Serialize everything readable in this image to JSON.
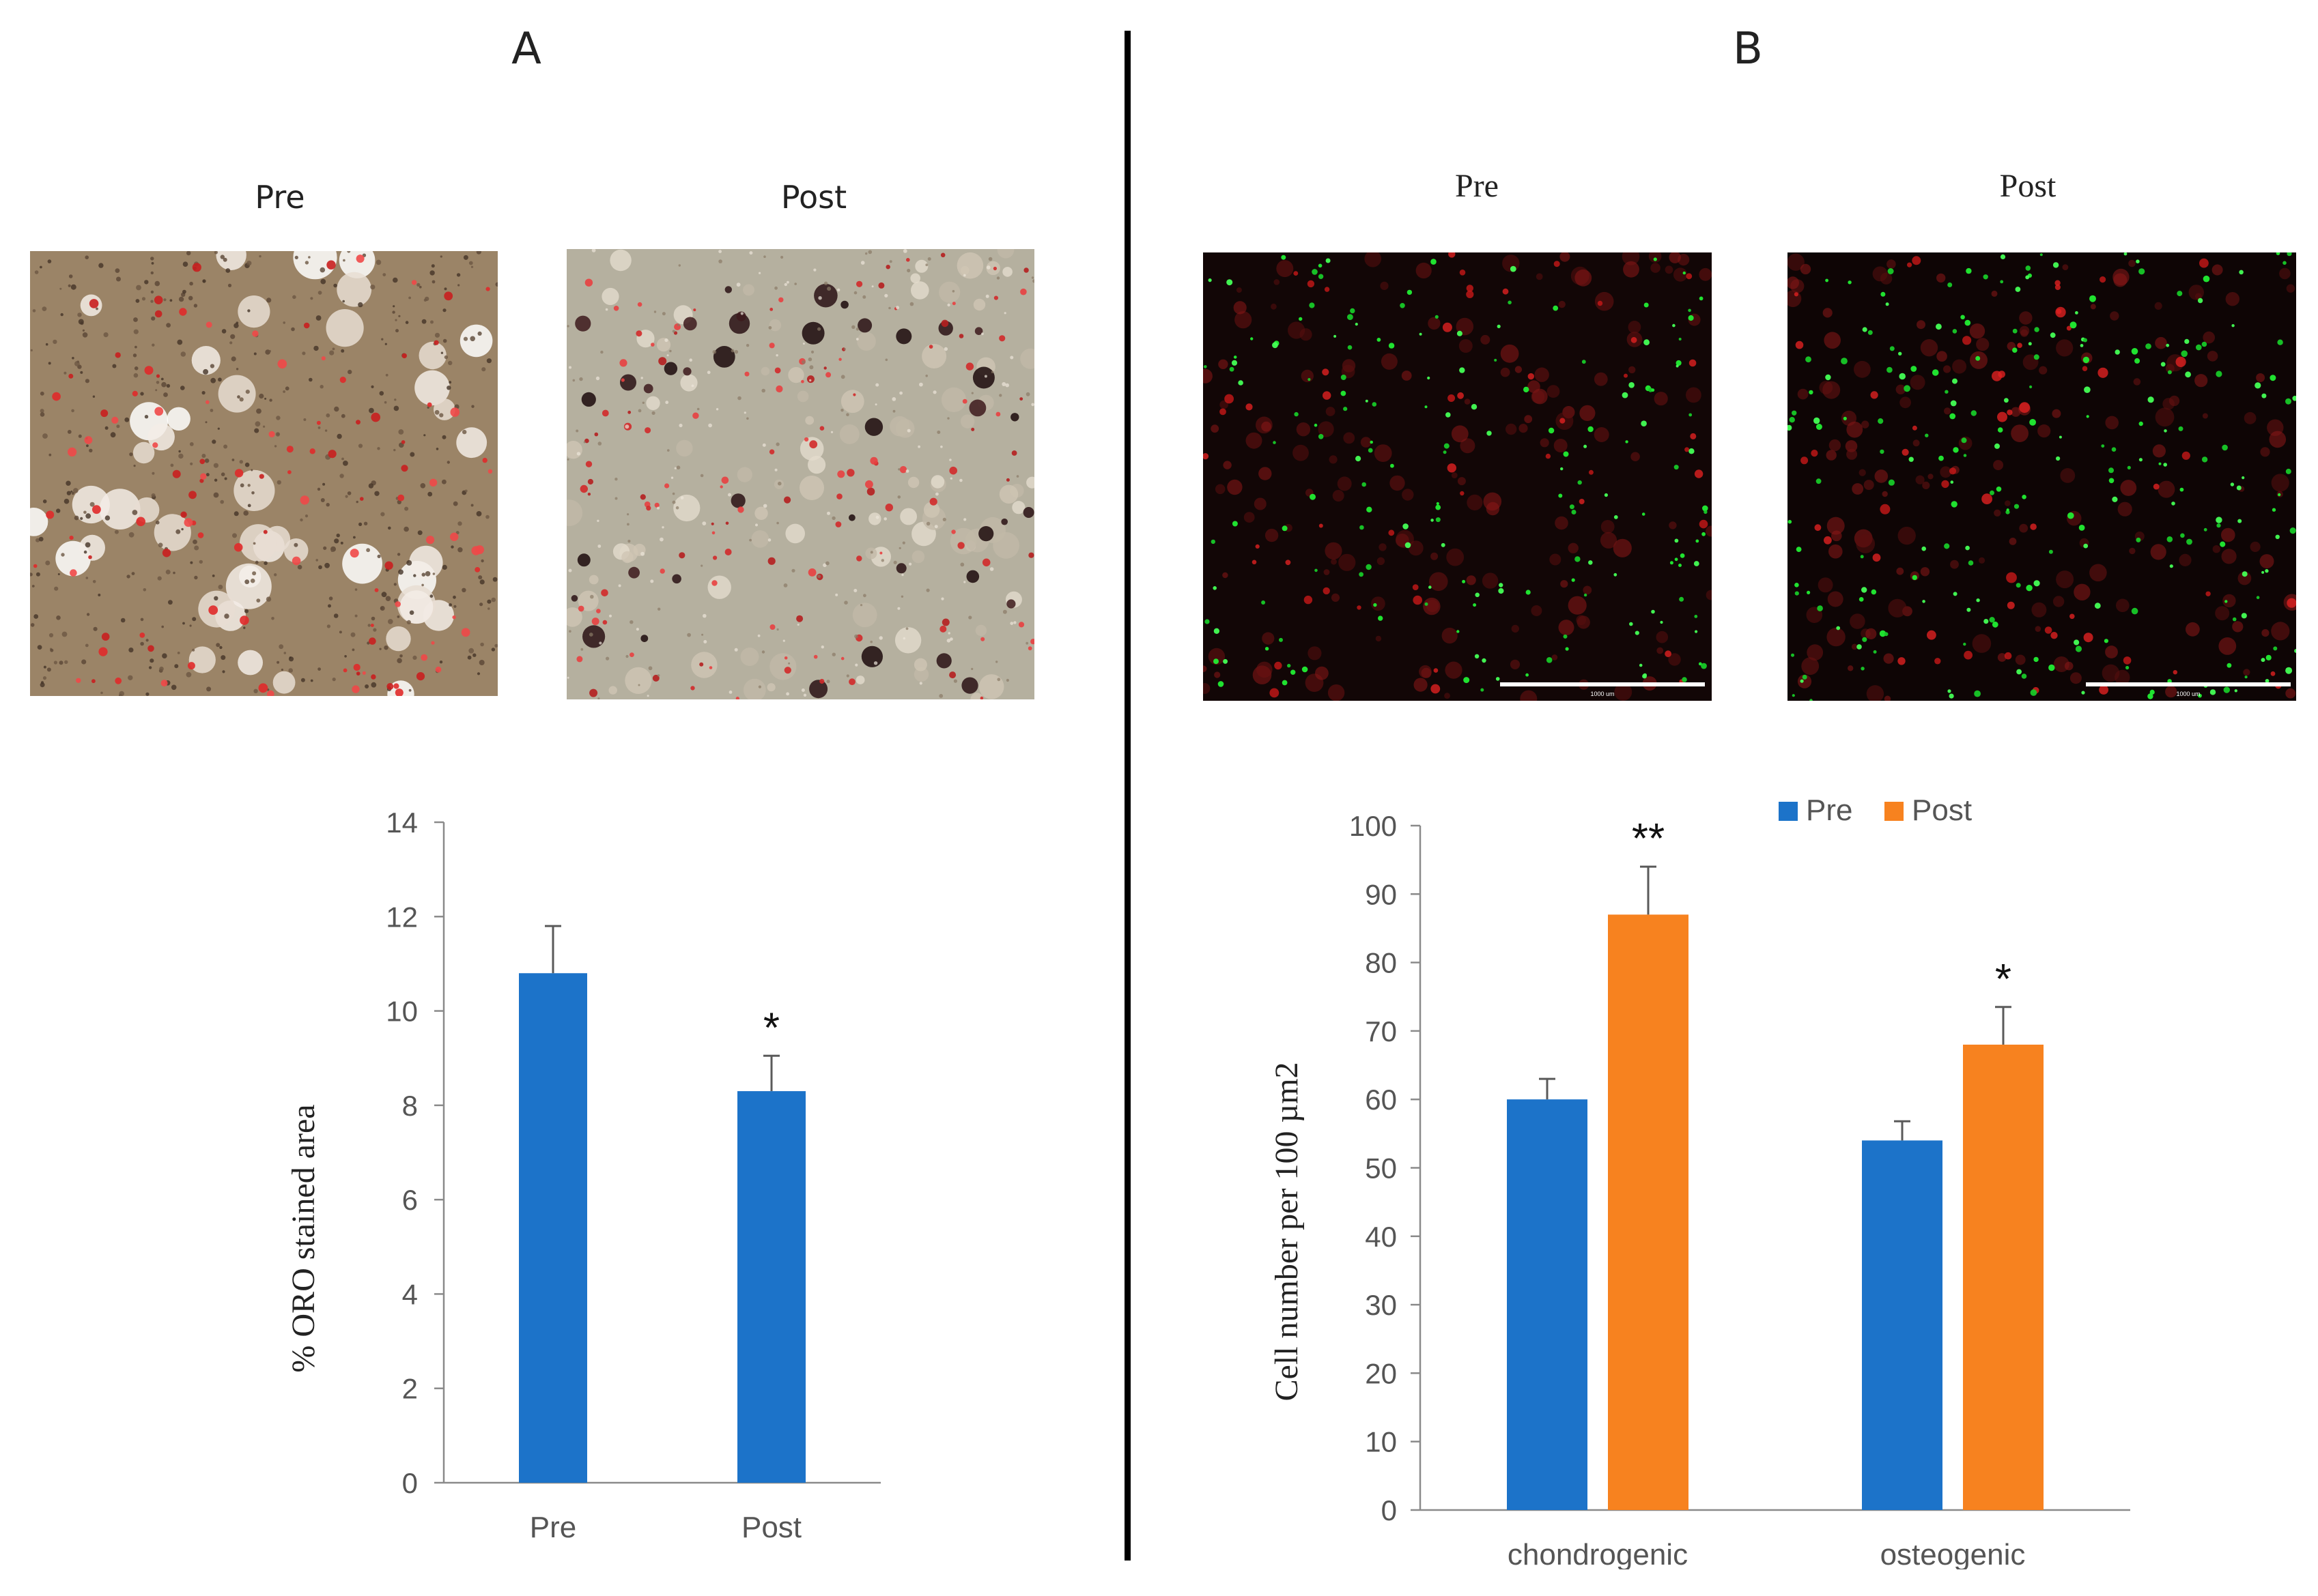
{
  "panels": {
    "a": {
      "letter": "A",
      "image_labels": [
        "Pre",
        "Post"
      ],
      "image_names": [
        "oro-staining-micrograph-pre",
        "oro-staining-micrograph-post"
      ]
    },
    "b": {
      "letter": "B",
      "image_labels": [
        "Pre",
        "Post"
      ],
      "image_names": [
        "fluorescence-micrograph-pre",
        "fluorescence-micrograph-post"
      ],
      "scale_bar_text": "1000 um"
    }
  },
  "colors": {
    "pre": "#1c73c9",
    "post": "#f7821f",
    "axis": "#8a8a8a",
    "error": "#5a5a5a"
  },
  "chart_data": [
    {
      "type": "bar",
      "title": "",
      "xlabel": "",
      "ylabel": "% ORO stained area",
      "categories": [
        "Pre",
        "Post"
      ],
      "ylim": [
        0,
        14
      ],
      "yticks": [
        0,
        2,
        4,
        6,
        8,
        10,
        12,
        14
      ],
      "series": [
        {
          "values": [
            10.8,
            8.3
          ],
          "errors": [
            1.0,
            0.75
          ],
          "color": "#1c73c9"
        }
      ],
      "annotations": [
        {
          "category": "Post",
          "text": "*"
        }
      ],
      "grid": false
    },
    {
      "type": "bar",
      "title": "",
      "xlabel": "",
      "ylabel": "Cell number per 100 µm2",
      "categories": [
        "chondrogenic",
        "osteogenic"
      ],
      "ylim": [
        0,
        100
      ],
      "yticks": [
        0,
        10,
        20,
        30,
        40,
        50,
        60,
        70,
        80,
        90,
        100
      ],
      "series": [
        {
          "name": "Pre",
          "values": [
            60,
            54
          ],
          "errors": [
            3,
            2.8
          ],
          "color": "#1c73c9"
        },
        {
          "name": "Post",
          "values": [
            87,
            68
          ],
          "errors": [
            7,
            5.5
          ],
          "color": "#f7821f"
        }
      ],
      "annotations": [
        {
          "category": "chondrogenic",
          "series": "Post",
          "text": "**"
        },
        {
          "category": "osteogenic",
          "series": "Post",
          "text": "*"
        }
      ],
      "legend": "top-center",
      "grid": false
    }
  ]
}
